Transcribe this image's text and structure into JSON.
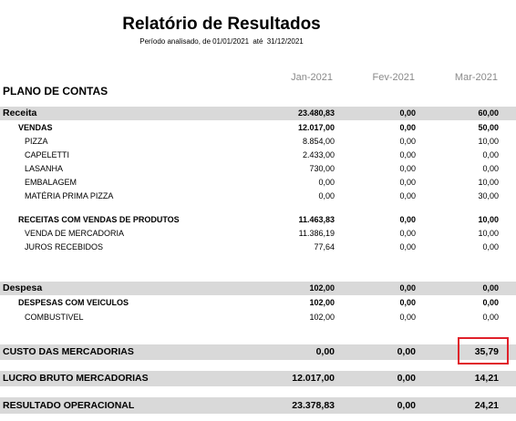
{
  "header": {
    "title": "Relatório de Resultados",
    "period_label": "Período analisado, de",
    "period_start": "01/01/2021",
    "period_to": "até",
    "period_end": "31/12/2021"
  },
  "table": {
    "plano_label": "PLANO DE CONTAS",
    "columns": [
      "Jan-2021",
      "Fev-2021",
      "Mar-2021"
    ],
    "rows": [
      {
        "label": "Receita",
        "values": [
          "23.480,83",
          "0,00",
          "60,00"
        ]
      },
      {
        "label": "VENDAS",
        "values": [
          "12.017,00",
          "0,00",
          "50,00"
        ]
      },
      {
        "label": "PIZZA",
        "values": [
          "8.854,00",
          "0,00",
          "10,00"
        ]
      },
      {
        "label": "CAPELETTI",
        "values": [
          "2.433,00",
          "0,00",
          "0,00"
        ]
      },
      {
        "label": "LASANHA",
        "values": [
          "730,00",
          "0,00",
          "0,00"
        ]
      },
      {
        "label": "EMBALAGEM",
        "values": [
          "0,00",
          "0,00",
          "10,00"
        ]
      },
      {
        "label": "MATÉRIA PRIMA PIZZA",
        "values": [
          "0,00",
          "0,00",
          "30,00"
        ]
      },
      {
        "label": "RECEITAS COM VENDAS DE PRODUTOS",
        "values": [
          "11.463,83",
          "0,00",
          "10,00"
        ]
      },
      {
        "label": "VENDA DE MERCADORIA",
        "values": [
          "11.386,19",
          "0,00",
          "10,00"
        ]
      },
      {
        "label": "JUROS RECEBIDOS",
        "values": [
          "77,64",
          "0,00",
          "0,00"
        ]
      },
      {
        "label": "Despesa",
        "values": [
          "102,00",
          "0,00",
          "0,00"
        ]
      },
      {
        "label": "DESPESAS COM VEICULOS",
        "values": [
          "102,00",
          "0,00",
          "0,00"
        ]
      },
      {
        "label": "COMBUSTIVEL",
        "values": [
          "102,00",
          "0,00",
          "0,00"
        ]
      },
      {
        "label": "CUSTO DAS MERCADORIAS",
        "values": [
          "0,00",
          "0,00",
          "35,79"
        ]
      },
      {
        "label": "LUCRO BRUTO MERCADORIAS",
        "values": [
          "12.017,00",
          "0,00",
          "14,21"
        ]
      },
      {
        "label": "RESULTADO OPERACIONAL",
        "values": [
          "23.378,83",
          "0,00",
          "24,21"
        ]
      }
    ]
  },
  "highlight": {
    "color": "#e0202a"
  }
}
